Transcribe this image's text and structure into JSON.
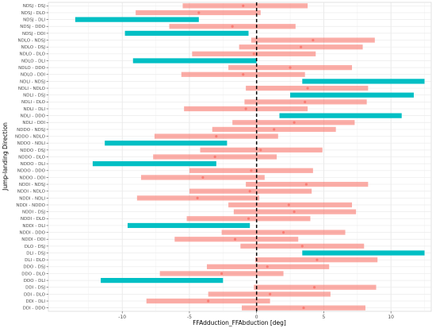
{
  "chart_data": {
    "type": "range-bar",
    "xlabel": "FFAdduction_FFAbduction [deg]",
    "ylabel": "Jump-landing Direction",
    "xlim": [
      -15.5,
      13
    ],
    "x_ticks": [
      -10,
      -5,
      0,
      5,
      10
    ],
    "grid": true,
    "reference_line_x": 0,
    "colors": {
      "not_significant": "#F8766D",
      "significant": "#00BFC4"
    },
    "rows": [
      {
        "label": "NDSJ - DSJ",
        "low": -5.5,
        "high": 3.8,
        "mean": -1.0,
        "significant": false
      },
      {
        "label": "NDSJ - DLO",
        "low": -9.0,
        "high": 0.3,
        "mean": -4.3,
        "significant": false
      },
      {
        "label": "NDSJ - DLI",
        "low": -13.5,
        "high": -4.3,
        "mean": -8.9,
        "significant": true
      },
      {
        "label": "NDSJ - DDO",
        "low": -6.5,
        "high": 2.9,
        "mean": -1.8,
        "significant": false
      },
      {
        "label": "NDSJ - DDI",
        "low": -9.8,
        "high": -0.6,
        "mean": -5.2,
        "significant": true
      },
      {
        "label": "NDLO - NDSJ",
        "low": -0.4,
        "high": 8.8,
        "mean": 4.2,
        "significant": false
      },
      {
        "label": "NDLO - DSJ",
        "low": -1.3,
        "high": 7.9,
        "mean": 3.3,
        "significant": false
      },
      {
        "label": "NDLO - DLO",
        "low": -4.8,
        "high": 4.4,
        "mean": -0.2,
        "significant": false
      },
      {
        "label": "NDLO - DLI",
        "low": -9.2,
        "high": 0.0,
        "mean": -4.6,
        "significant": true
      },
      {
        "label": "NDLO - DDO",
        "low": -2.1,
        "high": 7.1,
        "mean": 2.5,
        "significant": false
      },
      {
        "label": "NDLO - DDI",
        "low": -5.6,
        "high": 3.6,
        "mean": -1.0,
        "significant": false
      },
      {
        "label": "NDLI - NDSJ",
        "low": 3.4,
        "high": 12.5,
        "mean": 8.0,
        "significant": true
      },
      {
        "label": "NDLI - NDLO",
        "low": -0.8,
        "high": 8.3,
        "mean": 3.8,
        "significant": false
      },
      {
        "label": "NDLI - DSJ",
        "low": 2.5,
        "high": 11.7,
        "mean": 7.1,
        "significant": true
      },
      {
        "label": "NDLI - DLO",
        "low": -0.9,
        "high": 8.2,
        "mean": 3.6,
        "significant": false
      },
      {
        "label": "NDLI - DLI",
        "low": -5.4,
        "high": 3.8,
        "mean": -0.8,
        "significant": false
      },
      {
        "label": "NDLI - DDO",
        "low": 1.7,
        "high": 10.8,
        "mean": 6.3,
        "significant": true
      },
      {
        "label": "NDLI - DDI",
        "low": -1.8,
        "high": 7.3,
        "mean": 2.8,
        "significant": false
      },
      {
        "label": "NDDO - NDSJ",
        "low": -3.3,
        "high": 5.9,
        "mean": 1.3,
        "significant": false
      },
      {
        "label": "NDDO - NDLO",
        "low": -7.6,
        "high": 1.6,
        "mean": -3.0,
        "significant": false
      },
      {
        "label": "NDDO - NDLI",
        "low": -11.3,
        "high": -2.2,
        "mean": -6.7,
        "significant": true
      },
      {
        "label": "NDDO - DSJ",
        "low": -4.2,
        "high": 4.9,
        "mean": 0.3,
        "significant": false
      },
      {
        "label": "NDDO - DLO",
        "low": -7.7,
        "high": 1.5,
        "mean": -3.1,
        "significant": false
      },
      {
        "label": "NDDO - DLI",
        "low": -12.2,
        "high": -3.0,
        "mean": -7.6,
        "significant": true
      },
      {
        "label": "NDDO - DDO",
        "low": -5.0,
        "high": 4.2,
        "mean": -0.4,
        "significant": false
      },
      {
        "label": "NDDO - DDI",
        "low": -8.6,
        "high": 0.6,
        "mean": -4.0,
        "significant": false
      },
      {
        "label": "NDDI - NDSJ",
        "low": -0.8,
        "high": 8.3,
        "mean": 3.7,
        "significant": false
      },
      {
        "label": "NDDI - NDLO",
        "low": -5.0,
        "high": 4.1,
        "mean": -0.5,
        "significant": false
      },
      {
        "label": "NDDI - NDLI",
        "low": -8.9,
        "high": 0.2,
        "mean": -4.4,
        "significant": false
      },
      {
        "label": "NDDI - NDDO",
        "low": -2.1,
        "high": 7.1,
        "mean": 2.4,
        "significant": false
      },
      {
        "label": "NDDI - DSJ",
        "low": -1.7,
        "high": 7.4,
        "mean": 2.8,
        "significant": false
      },
      {
        "label": "NDDI - DLO",
        "low": -5.2,
        "high": 4.0,
        "mean": -0.6,
        "significant": false
      },
      {
        "label": "NDDI - DLI",
        "low": -9.6,
        "high": -0.5,
        "mean": -5.0,
        "significant": true
      },
      {
        "label": "NDDI - DDO",
        "low": -2.6,
        "high": 6.6,
        "mean": 2.0,
        "significant": false
      },
      {
        "label": "NDDI - DDI",
        "low": -6.1,
        "high": 3.1,
        "mean": -1.6,
        "significant": false
      },
      {
        "label": "DLO - DSJ",
        "low": -1.2,
        "high": 8.0,
        "mean": 3.4,
        "significant": false
      },
      {
        "label": "DLI - DSJ",
        "low": 3.4,
        "high": 12.5,
        "mean": 7.9,
        "significant": true
      },
      {
        "label": "DLI - DLO",
        "low": -0.1,
        "high": 9.0,
        "mean": 4.5,
        "significant": false
      },
      {
        "label": "DDO - DSJ",
        "low": -3.7,
        "high": 5.4,
        "mean": 0.8,
        "significant": false
      },
      {
        "label": "DDO - DLO",
        "low": -7.2,
        "high": 2.0,
        "mean": -2.6,
        "significant": false
      },
      {
        "label": "DDO - DLI",
        "low": -11.6,
        "high": -2.5,
        "mean": -7.1,
        "significant": true
      },
      {
        "label": "DDI - DSJ",
        "low": -0.2,
        "high": 8.9,
        "mean": 4.3,
        "significant": false
      },
      {
        "label": "DDI - DLO",
        "low": -3.6,
        "high": 5.5,
        "mean": 1.0,
        "significant": false
      },
      {
        "label": "DDI - DLI",
        "low": -8.2,
        "high": 1.0,
        "mean": -3.6,
        "significant": false
      },
      {
        "label": "DDI - DDO",
        "low": -1.1,
        "high": 8.1,
        "mean": 3.5,
        "significant": false
      }
    ]
  }
}
